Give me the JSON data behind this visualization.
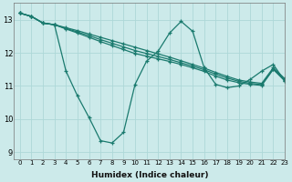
{
  "xlabel": "Humidex (Indice chaleur)",
  "ylabel": "",
  "bg_color": "#cceaea",
  "line_color": "#1a7a6e",
  "grid_color": "#add8d8",
  "xlim": [
    -0.5,
    23
  ],
  "ylim": [
    8.8,
    13.5
  ],
  "xticks": [
    0,
    1,
    2,
    3,
    4,
    5,
    6,
    7,
    8,
    9,
    10,
    11,
    12,
    13,
    14,
    15,
    16,
    17,
    18,
    19,
    20,
    21,
    22,
    23
  ],
  "yticks": [
    9,
    10,
    11,
    12,
    13
  ],
  "series": [
    [
      13.2,
      13.1,
      12.9,
      12.85,
      11.45,
      10.7,
      10.05,
      9.35,
      9.28,
      9.6,
      11.05,
      11.75,
      12.05,
      12.6,
      12.95,
      12.65,
      11.55,
      11.05,
      10.95,
      11.0,
      11.2,
      11.45,
      11.65,
      11.15
    ],
    [
      13.2,
      13.1,
      12.9,
      12.85,
      12.72,
      12.6,
      12.47,
      12.34,
      12.22,
      12.1,
      11.98,
      11.9,
      11.82,
      11.74,
      11.65,
      11.55,
      11.44,
      11.3,
      11.18,
      11.1,
      11.05,
      11.02,
      11.5,
      11.15
    ],
    [
      13.2,
      13.1,
      12.9,
      12.85,
      12.74,
      12.63,
      12.52,
      12.4,
      12.29,
      12.18,
      12.07,
      11.98,
      11.89,
      11.8,
      11.7,
      11.6,
      11.49,
      11.36,
      11.24,
      11.14,
      11.08,
      11.04,
      11.52,
      11.18
    ],
    [
      13.2,
      13.1,
      12.9,
      12.85,
      12.76,
      12.67,
      12.57,
      12.47,
      12.37,
      12.27,
      12.17,
      12.07,
      11.97,
      11.87,
      11.76,
      11.65,
      11.54,
      11.41,
      11.29,
      11.18,
      11.12,
      11.08,
      11.55,
      11.22
    ]
  ]
}
